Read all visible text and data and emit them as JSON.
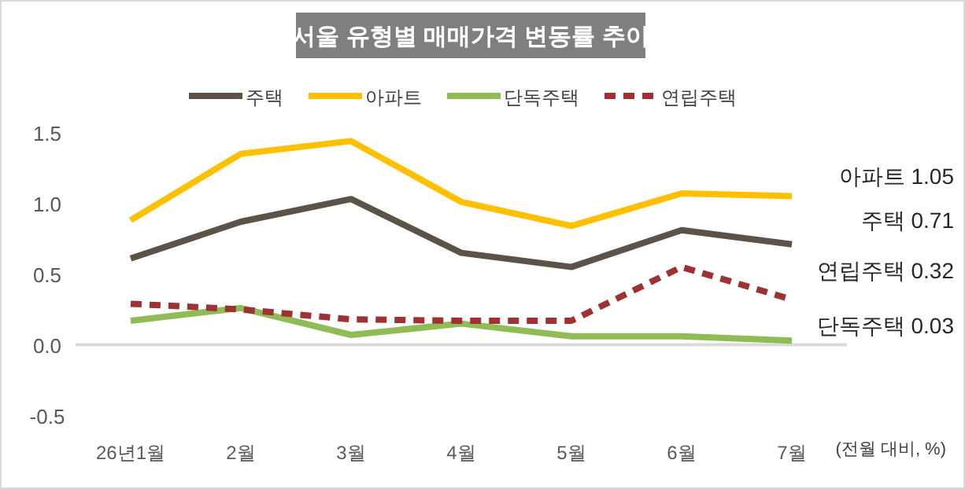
{
  "chart_data": {
    "type": "line",
    "title": "서울 유형별 매매가격 변동률 추이",
    "categories": [
      "26년1월",
      "2월",
      "3월",
      "4월",
      "5월",
      "6월",
      "7월"
    ],
    "series": [
      {
        "name": "주택",
        "color": "#5b5248",
        "values": [
          0.61,
          0.87,
          1.03,
          0.65,
          0.55,
          0.81,
          0.71
        ]
      },
      {
        "name": "아파트",
        "color": "#ffc000",
        "values": [
          0.88,
          1.35,
          1.44,
          1.01,
          0.84,
          1.07,
          1.05
        ]
      },
      {
        "name": "단독주택",
        "color": "#8fbc55",
        "values": [
          0.17,
          0.26,
          0.07,
          0.15,
          0.06,
          0.06,
          0.03
        ]
      },
      {
        "name": "연립주택",
        "color": "#9e3232",
        "line_style": "dashed",
        "values": [
          0.29,
          0.25,
          0.18,
          0.17,
          0.17,
          0.55,
          0.32
        ]
      }
    ],
    "ylim": [
      -0.5,
      1.5
    ],
    "yticks": [
      {
        "value": -0.5,
        "label": "-0.5"
      },
      {
        "value": 0,
        "label": "0.0"
      },
      {
        "value": 0.5,
        "label": "0.5"
      },
      {
        "value": 1,
        "label": "1.0"
      },
      {
        "value": 1.5,
        "label": "1.5"
      }
    ],
    "ref_lines": [
      {
        "axis": "y",
        "value": 0,
        "color": "#d9d9d9"
      }
    ],
    "grid": false,
    "legend": "top",
    "marker": "none",
    "annotations": [
      "아파트 1.05",
      "주택 0.71",
      "연립주택 0.32",
      "단독주택 0.03",
      "(전월 대비, %)"
    ]
  }
}
